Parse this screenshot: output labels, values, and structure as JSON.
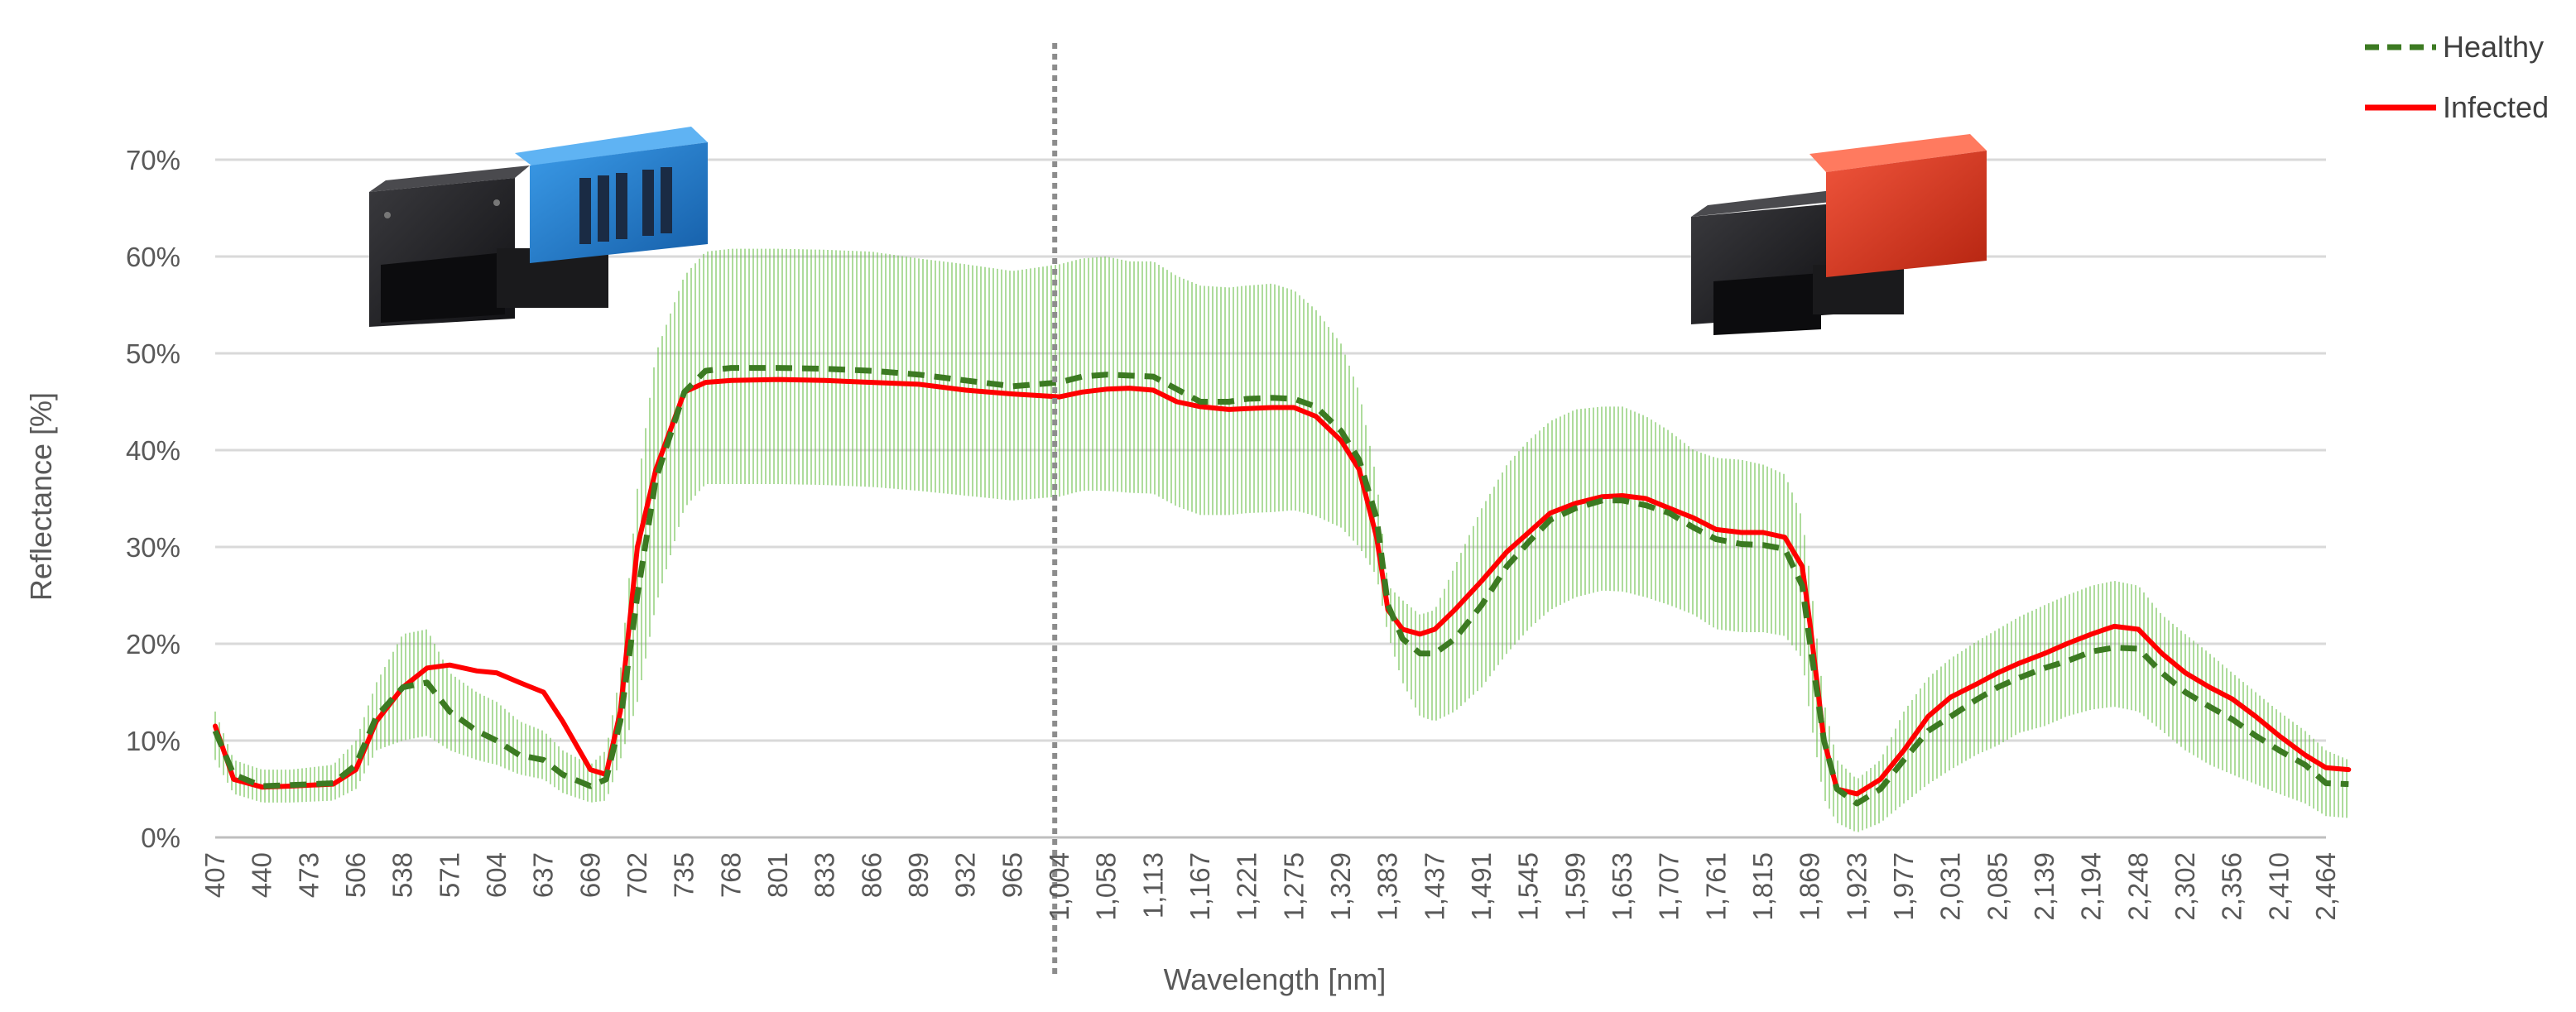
{
  "chart_data": {
    "type": "line",
    "xlabel": "Wavelength [nm]",
    "ylabel": "Reflectance [%]",
    "ylim": [
      0,
      70
    ],
    "y_ticks": [
      0,
      10,
      20,
      30,
      40,
      50,
      60,
      70
    ],
    "y_tick_labels": [
      "0%",
      "10%",
      "20%",
      "30%",
      "40%",
      "50%",
      "60%",
      "70%"
    ],
    "x_tick_labels": [
      "407",
      "440",
      "473",
      "506",
      "538",
      "571",
      "604",
      "637",
      "669",
      "702",
      "735",
      "768",
      "801",
      "833",
      "866",
      "899",
      "932",
      "965",
      "1,004",
      "1,058",
      "1,113",
      "1,167",
      "1,221",
      "1,275",
      "1,329",
      "1,383",
      "1,437",
      "1,491",
      "1,545",
      "1,599",
      "1,653",
      "1,707",
      "1,761",
      "1,815",
      "1,869",
      "1,923",
      "1,977",
      "2,031",
      "2,085",
      "2,139",
      "2,194",
      "2,248",
      "2,302",
      "2,356",
      "2,410",
      "2,464"
    ],
    "sensor_boundary_nm": 1000,
    "grid": true,
    "legend_position": "top-right",
    "x": [
      407,
      420,
      440,
      460,
      490,
      506,
      520,
      538,
      555,
      571,
      590,
      604,
      620,
      637,
      650,
      669,
      680,
      690,
      702,
      715,
      735,
      750,
      768,
      801,
      833,
      866,
      899,
      932,
      965,
      1004,
      1030,
      1058,
      1085,
      1113,
      1140,
      1167,
      1200,
      1221,
      1250,
      1275,
      1300,
      1329,
      1350,
      1370,
      1383,
      1400,
      1420,
      1437,
      1460,
      1491,
      1520,
      1545,
      1570,
      1599,
      1630,
      1653,
      1680,
      1707,
      1735,
      1761,
      1790,
      1815,
      1840,
      1860,
      1869,
      1885,
      1900,
      1923,
      1950,
      1977,
      2005,
      2031,
      2060,
      2085,
      2110,
      2139,
      2165,
      2194,
      2220,
      2248,
      2275,
      2302,
      2330,
      2356,
      2383,
      2410,
      2440,
      2464,
      2490
    ],
    "series": [
      {
        "name": "Healthy",
        "color": "#3c7a22",
        "style": "dashed",
        "values": [
          11,
          6.5,
          5.3,
          5.4,
          5.6,
          7.5,
          12.5,
          15.5,
          16,
          13,
          11,
          10,
          8.5,
          8,
          6.5,
          5.3,
          6,
          12,
          25,
          37,
          46,
          48.2,
          48.5,
          48.5,
          48.4,
          48.2,
          47.8,
          47.2,
          46.6,
          47,
          47.6,
          47.8,
          47.7,
          47.6,
          46.3,
          45,
          45,
          45.3,
          45.4,
          45.3,
          44.5,
          42,
          39,
          33,
          24,
          20.5,
          19,
          19,
          20.5,
          24,
          28,
          30.5,
          32.8,
          34,
          34.8,
          34.8,
          34.3,
          33.5,
          32,
          30.8,
          30.3,
          30.2,
          29.8,
          26,
          20,
          10,
          5,
          3.5,
          5,
          8,
          11,
          12.5,
          14.2,
          15.5,
          16.5,
          17.5,
          18.2,
          19.2,
          19.6,
          19.5,
          17,
          15,
          13.5,
          12.2,
          10.5,
          9,
          7.5,
          5.6,
          5.5
        ]
      },
      {
        "name": "Infected",
        "color": "#ff0000",
        "style": "solid",
        "values": [
          11.5,
          6,
          5.2,
          5.3,
          5.5,
          7,
          12,
          15.5,
          17.5,
          17.8,
          17.2,
          17,
          16,
          15,
          12,
          7,
          6.5,
          13,
          30,
          38,
          46,
          47,
          47.2,
          47.3,
          47.2,
          47,
          46.8,
          46.2,
          45.8,
          45.5,
          46,
          46.3,
          46.4,
          46.2,
          45,
          44.5,
          44.2,
          44.3,
          44.4,
          44.4,
          43.5,
          41,
          38,
          31,
          23.5,
          21.5,
          21,
          21.5,
          23.5,
          26.5,
          29.5,
          31.5,
          33.5,
          34.5,
          35.2,
          35.3,
          35,
          34,
          33,
          31.8,
          31.5,
          31.5,
          31,
          28,
          22,
          10,
          5,
          4.5,
          6,
          9,
          12.5,
          14.5,
          15.8,
          17,
          18,
          19,
          20,
          21,
          21.8,
          21.5,
          19,
          17,
          15.5,
          14.3,
          12.5,
          10.5,
          8.5,
          7.2,
          7
        ]
      }
    ],
    "variability": {
      "color": "#6cc04a",
      "upper": [
        13,
        8,
        7,
        7,
        7.5,
        10,
        16,
        21,
        21.5,
        17,
        15,
        14,
        12,
        11,
        9,
        7.5,
        9,
        17,
        36,
        50,
        58,
        60.5,
        60.8,
        60.8,
        60.7,
        60.5,
        59.8,
        59.2,
        58.5,
        59.2,
        59.8,
        60,
        59.5,
        59.5,
        58,
        57,
        56.8,
        57,
        57.2,
        56.5,
        54.5,
        51,
        46,
        37,
        26,
        24.5,
        23,
        23.5,
        28,
        34,
        38.5,
        41,
        43,
        44.2,
        44.5,
        44.5,
        43.5,
        42,
        40,
        39.2,
        39,
        38.5,
        37.5,
        33,
        27,
        14,
        8,
        6,
        8,
        13,
        16.5,
        18.5,
        20.2,
        21.5,
        22.8,
        24,
        25,
        26,
        26.5,
        26,
        23,
        21,
        19,
        17,
        15,
        13,
        11,
        9,
        8
      ],
      "lower": [
        8,
        4.5,
        3.6,
        3.6,
        3.8,
        5,
        9,
        10,
        10.5,
        9,
        8,
        7.5,
        6.5,
        6,
        4.6,
        3.6,
        3.8,
        8,
        14,
        24,
        34,
        36.5,
        36.5,
        36.5,
        36.4,
        36.2,
        35.8,
        35.3,
        34.8,
        35.2,
        35.8,
        35.8,
        35.6,
        35.5,
        34.2,
        33.3,
        33.3,
        33.5,
        33.6,
        33.8,
        33.2,
        32,
        30,
        27,
        21,
        16,
        12.5,
        12,
        13,
        15.5,
        19,
        21.5,
        23.5,
        24.8,
        25.5,
        25.4,
        24.8,
        24,
        23,
        21.5,
        21.2,
        21.2,
        20.8,
        18.5,
        12.5,
        4,
        1.5,
        0.5,
        1.5,
        3.5,
        5.5,
        7,
        8.5,
        9.5,
        10.8,
        11.5,
        12.5,
        13.2,
        13.5,
        13,
        11,
        9,
        7.5,
        6.5,
        5.5,
        4.5,
        3.5,
        2.2,
        2
      ]
    }
  }
}
